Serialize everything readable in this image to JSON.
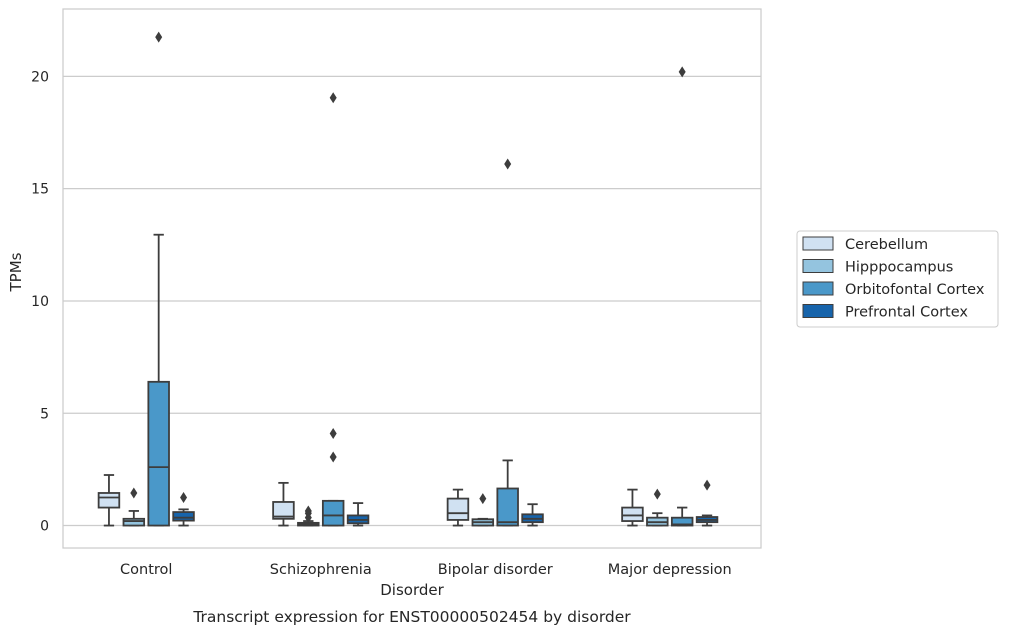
{
  "chart_data": {
    "type": "box",
    "title": "",
    "caption": "Transcript expression for ENST00000502454 by disorder",
    "xlabel": "Disorder",
    "ylabel": "TPMs",
    "ylim": [
      -1,
      23
    ],
    "yticks": [
      0,
      5,
      10,
      15,
      20
    ],
    "grid": "horizontal",
    "legend_position": "right",
    "categories": [
      "Control",
      "Schizophrenia",
      "Bipolar disorder",
      "Major depression"
    ],
    "series": [
      {
        "name": "Cerebellum",
        "color": "#d0e1f2",
        "boxes": [
          {
            "whisker_low": 0.0,
            "q1": 0.8,
            "median": 1.25,
            "q3": 1.45,
            "whisker_high": 2.25,
            "outliers": []
          },
          {
            "whisker_low": 0.0,
            "q1": 0.3,
            "median": 0.4,
            "q3": 1.05,
            "whisker_high": 1.9,
            "outliers": []
          },
          {
            "whisker_low": 0.0,
            "q1": 0.25,
            "median": 0.55,
            "q3": 1.2,
            "whisker_high": 1.6,
            "outliers": []
          },
          {
            "whisker_low": 0.0,
            "q1": 0.2,
            "median": 0.45,
            "q3": 0.8,
            "whisker_high": 1.6,
            "outliers": []
          }
        ]
      },
      {
        "name": "Hipppocampus",
        "color": "#94c4df",
        "boxes": [
          {
            "whisker_low": 0.0,
            "q1": 0.0,
            "median": 0.2,
            "q3": 0.3,
            "whisker_high": 0.65,
            "outliers": [
              1.45
            ]
          },
          {
            "whisker_low": 0.0,
            "q1": 0.0,
            "median": 0.05,
            "q3": 0.12,
            "whisker_high": 0.2,
            "outliers": [
              0.35,
              0.55,
              0.65
            ]
          },
          {
            "whisker_low": 0.0,
            "q1": 0.0,
            "median": 0.15,
            "q3": 0.28,
            "whisker_high": 0.3,
            "outliers": [
              1.2
            ]
          },
          {
            "whisker_low": 0.0,
            "q1": 0.0,
            "median": 0.15,
            "q3": 0.35,
            "whisker_high": 0.55,
            "outliers": [
              1.4
            ]
          }
        ]
      },
      {
        "name": "Orbitofontal Cortex",
        "color": "#4a98c9",
        "boxes": [
          {
            "whisker_low": 0.0,
            "q1": 0.0,
            "median": 2.6,
            "q3": 6.4,
            "whisker_high": 12.95,
            "outliers": [
              21.75
            ]
          },
          {
            "whisker_low": 0.0,
            "q1": 0.0,
            "median": 0.45,
            "q3": 1.1,
            "whisker_high": 1.1,
            "outliers": [
              3.05,
              4.1,
              19.05
            ]
          },
          {
            "whisker_low": 0.0,
            "q1": 0.0,
            "median": 0.15,
            "q3": 1.65,
            "whisker_high": 2.9,
            "outliers": [
              16.1
            ]
          },
          {
            "whisker_low": 0.0,
            "q1": 0.0,
            "median": 0.05,
            "q3": 0.35,
            "whisker_high": 0.8,
            "outliers": [
              20.2
            ]
          }
        ]
      },
      {
        "name": "Prefrontal Cortex",
        "color": "#1764ab",
        "boxes": [
          {
            "whisker_low": 0.0,
            "q1": 0.22,
            "median": 0.35,
            "q3": 0.6,
            "whisker_high": 0.72,
            "outliers": [
              1.25
            ]
          },
          {
            "whisker_low": 0.0,
            "q1": 0.1,
            "median": 0.25,
            "q3": 0.45,
            "whisker_high": 1.0,
            "outliers": []
          },
          {
            "whisker_low": 0.0,
            "q1": 0.15,
            "median": 0.3,
            "q3": 0.5,
            "whisker_high": 0.95,
            "outliers": []
          },
          {
            "whisker_low": 0.0,
            "q1": 0.15,
            "median": 0.25,
            "q3": 0.38,
            "whisker_high": 0.45,
            "outliers": [
              1.8
            ]
          }
        ]
      }
    ]
  }
}
